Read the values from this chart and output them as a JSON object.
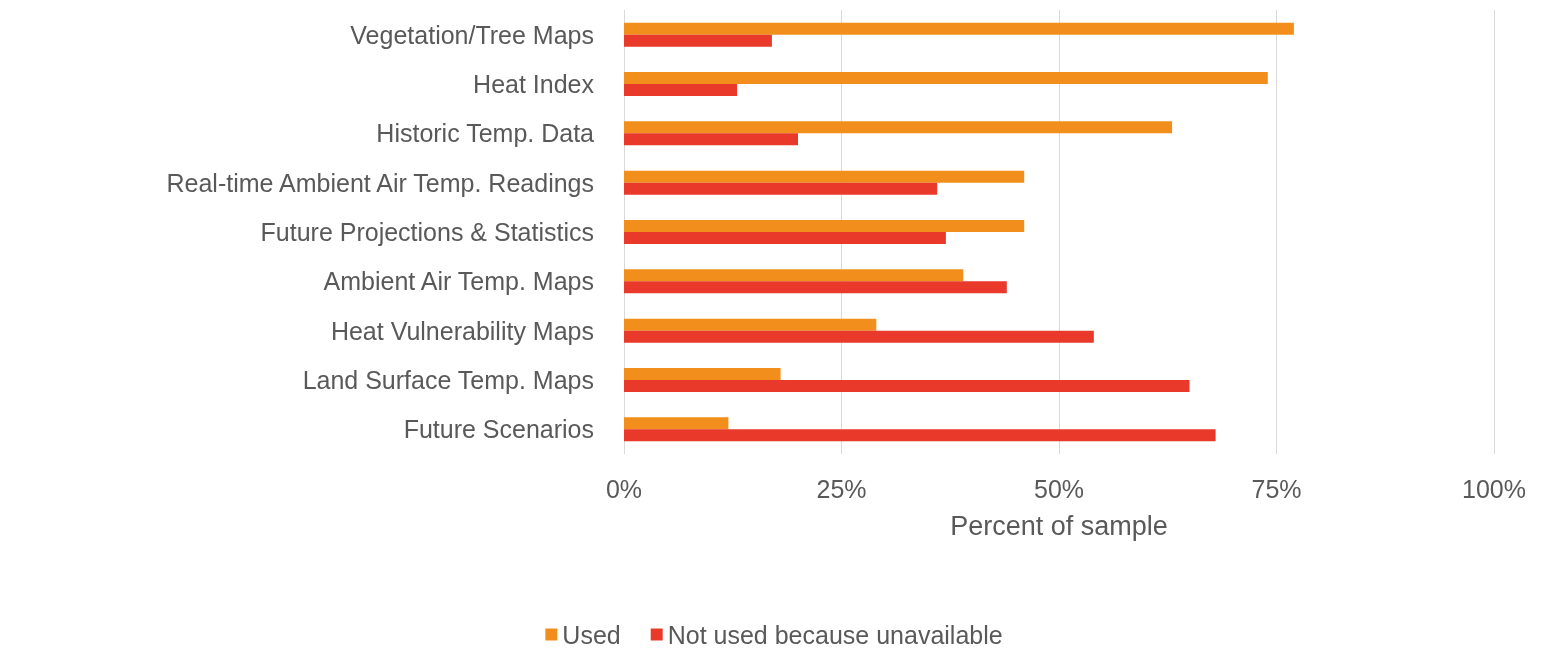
{
  "chart_data": {
    "type": "bar",
    "orientation": "horizontal",
    "xlabel": "Percent of sample",
    "categories": [
      "Vegetation/Tree Maps",
      "Heat Index",
      "Historic Temp. Data",
      "Real-time Ambient Air Temp. Readings",
      "Future Projections & Statistics",
      "Ambient Air Temp. Maps",
      "Heat Vulnerability Maps",
      "Land Surface Temp. Maps",
      "Future Scenarios"
    ],
    "series": [
      {
        "name": "Used",
        "color": "#f28e1c",
        "values": [
          77,
          74,
          63,
          46,
          46,
          39,
          29,
          18,
          12
        ]
      },
      {
        "name": "Not used because unavailable",
        "color": "#e8392a",
        "values": [
          17,
          13,
          20,
          36,
          37,
          44,
          54,
          65,
          68
        ]
      }
    ],
    "xlim": [
      0,
      100
    ],
    "xticks": [
      {
        "value": 0,
        "label": "0%"
      },
      {
        "value": 25,
        "label": "25%"
      },
      {
        "value": 50,
        "label": "50%"
      },
      {
        "value": 75,
        "label": "75%"
      },
      {
        "value": 100,
        "label": "100%"
      }
    ],
    "grid": "x",
    "legend": "bottom"
  }
}
